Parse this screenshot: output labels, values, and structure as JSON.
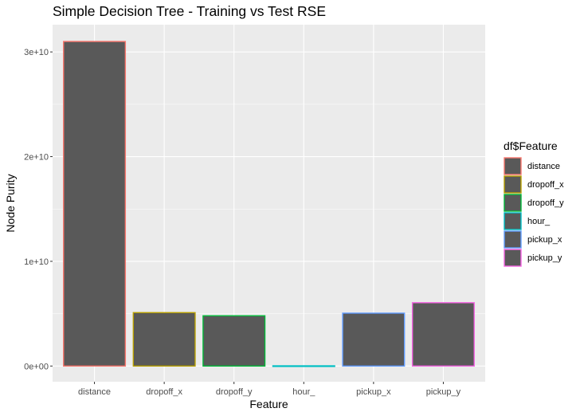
{
  "chart_data": {
    "type": "bar",
    "title": "Simple Decision Tree - Training vs Test RSE",
    "xlabel": "Feature",
    "ylabel": "Node Purity",
    "categories": [
      "distance",
      "dropoff_x",
      "dropoff_y",
      "hour_",
      "pickup_x",
      "pickup_y"
    ],
    "values": [
      31000000000,
      5100000000,
      4800000000,
      20000000,
      5050000000,
      6050000000
    ],
    "ylim": [
      -1500000000,
      32600000000
    ],
    "yticks": [
      0,
      10000000000,
      20000000000,
      30000000000
    ],
    "ytick_labels": [
      "0e+00",
      "1e+10",
      "2e+10",
      "3e+10"
    ],
    "grid": true,
    "bar_fill": "#595959",
    "outline_colors": [
      "#F8766D",
      "#B79F00",
      "#00BA38",
      "#00BFC4",
      "#619CFF",
      "#F564E3"
    ],
    "panel_background": "#EBEBEB",
    "legend": {
      "title": "df$Feature",
      "position": "right",
      "entries": [
        "distance",
        "dropoff_x",
        "dropoff_y",
        "hour_",
        "pickup_x",
        "pickup_y"
      ]
    }
  }
}
